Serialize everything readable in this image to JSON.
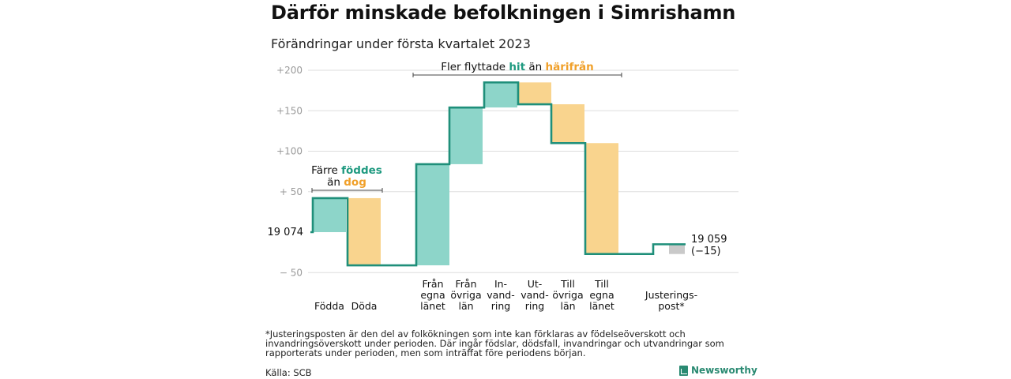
{
  "title": "Därför minskade befolkningen i Simrishamn",
  "subtitle": "Förändringar under första kvartalet 2023",
  "footnote": "*Justeringsposten är den del av folkökningen som inte kan förklaras av födelseöverskott och invandringsöverskott under perioden. Där ingår födslar, dödsfall, invandringar och utvandringar som rapporterats under perioden, men som inträffat före periodens början.",
  "source": "Källa: SCB",
  "brand": "Newsworthy",
  "colors": {
    "increase": "#8dd5c9",
    "decrease": "#f9d48e",
    "adjustment": "#c9c9c9",
    "line": "#1f8f7a",
    "teal_text": "#1f9a80",
    "orange_text": "#f0a02a"
  },
  "chart_data": {
    "type": "waterfall",
    "start_label": "19 074",
    "end_label": "19 059",
    "end_change_label": "(−15)",
    "ylim": [
      -55,
      205
    ],
    "yticks": [
      {
        "value": 200,
        "label": "+200"
      },
      {
        "value": 150,
        "label": "+150"
      },
      {
        "value": 100,
        "label": "+100"
      },
      {
        "value": 50,
        "label": "+ 50"
      },
      {
        "value": -50,
        "label": "− 50"
      }
    ],
    "steps": [
      {
        "label": [
          "Födda"
        ],
        "from": 0,
        "to": 42,
        "kind": "increase"
      },
      {
        "label": [
          "Döda"
        ],
        "from": 42,
        "to": -41,
        "kind": "decrease"
      },
      {
        "label": [
          "Från",
          "egna",
          "länet"
        ],
        "from": -41,
        "to": 84,
        "kind": "increase"
      },
      {
        "label": [
          "Från",
          "övriga",
          "län"
        ],
        "from": 84,
        "to": 154,
        "kind": "increase"
      },
      {
        "label": [
          "In-",
          "vand-",
          "ring"
        ],
        "from": 154,
        "to": 185,
        "kind": "increase"
      },
      {
        "label": [
          "Ut-",
          "vand-",
          "ring"
        ],
        "from": 185,
        "to": 158,
        "kind": "decrease"
      },
      {
        "label": [
          "Till",
          "övriga",
          "län"
        ],
        "from": 158,
        "to": 110,
        "kind": "decrease"
      },
      {
        "label": [
          "Till",
          "egna",
          "länet"
        ],
        "from": 110,
        "to": -27,
        "kind": "decrease"
      },
      {
        "label": [
          "Justerings-",
          "post*"
        ],
        "from": -27,
        "to": -15,
        "kind": "adjustment"
      }
    ],
    "annotations": [
      {
        "parts": [
          [
            "Färre ",
            "normal"
          ],
          [
            "föddes",
            "teal"
          ]
        ],
        "parts2": [
          [
            "än ",
            "normal"
          ],
          [
            "dog",
            "orange"
          ]
        ]
      },
      {
        "parts": [
          [
            "Fler flyttade ",
            "normal"
          ],
          [
            "hit",
            "teal"
          ],
          [
            " än ",
            "normal"
          ],
          [
            "härifrån",
            "orange"
          ]
        ]
      }
    ]
  }
}
